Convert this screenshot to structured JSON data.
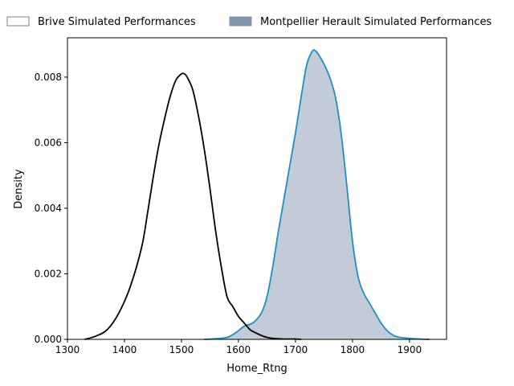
{
  "chart_data": {
    "type": "area",
    "xlabel": "Home_Rtng",
    "ylabel": "Density",
    "xlim": [
      1300,
      1965
    ],
    "ylim": [
      0,
      0.0092
    ],
    "x_ticks": [
      1300,
      1400,
      1500,
      1600,
      1700,
      1800,
      1900
    ],
    "x_tick_labels": [
      "1300",
      "1400",
      "1500",
      "1600",
      "1700",
      "1800",
      "1900"
    ],
    "y_ticks": [
      0,
      0.002,
      0.004,
      0.006,
      0.008
    ],
    "y_tick_labels": [
      "0.000",
      "0.002",
      "0.004",
      "0.006",
      "0.008"
    ],
    "grid": false,
    "legend_placement": "top-outside",
    "series": [
      {
        "name": "Brive Simulated Performances",
        "line_color": "#000000",
        "fill_color": "none",
        "legend_edge": "#7f7f7f",
        "x": [
          1330,
          1350,
          1370,
          1390,
          1410,
          1430,
          1440,
          1450,
          1460,
          1470,
          1480,
          1490,
          1500,
          1505,
          1510,
          1520,
          1530,
          1540,
          1550,
          1560,
          1570,
          1580,
          1590,
          1600,
          1610,
          1620,
          1630,
          1640,
          1650,
          1660,
          1680,
          1700,
          1710
        ],
        "y": [
          0.0,
          0.0001,
          0.0003,
          0.0008,
          0.0016,
          0.0028,
          0.0038,
          0.0049,
          0.0059,
          0.0067,
          0.0074,
          0.0079,
          0.0081,
          0.0081,
          0.008,
          0.0076,
          0.0068,
          0.0058,
          0.0046,
          0.0033,
          0.0022,
          0.0013,
          0.001,
          0.0007,
          0.0005,
          0.0003,
          0.0002,
          0.00012,
          6e-05,
          3e-05,
          1e-05,
          1e-05,
          0.0
        ]
      },
      {
        "name": "Montpellier Herault Simulated Performances",
        "line_color": "#1f8fbf",
        "fill_color": "#a8b5c6",
        "legend_face": "#7f97ad",
        "x": [
          1540,
          1560,
          1580,
          1595,
          1610,
          1625,
          1640,
          1650,
          1660,
          1670,
          1680,
          1690,
          1700,
          1710,
          1720,
          1730,
          1735,
          1740,
          1750,
          1760,
          1770,
          1780,
          1790,
          1800,
          1810,
          1820,
          1830,
          1840,
          1850,
          1860,
          1870,
          1880,
          1900,
          1920,
          1935
        ],
        "y": [
          0.0,
          2e-05,
          6e-05,
          0.0002,
          0.0004,
          0.0005,
          0.0008,
          0.0013,
          0.0022,
          0.0033,
          0.0043,
          0.0053,
          0.0063,
          0.0074,
          0.0084,
          0.0088,
          0.0088,
          0.0087,
          0.0084,
          0.008,
          0.0074,
          0.0063,
          0.0047,
          0.003,
          0.0019,
          0.0014,
          0.0011,
          0.0008,
          0.0005,
          0.00028,
          0.00014,
          7e-05,
          3e-05,
          1e-05,
          0.0
        ]
      }
    ]
  }
}
